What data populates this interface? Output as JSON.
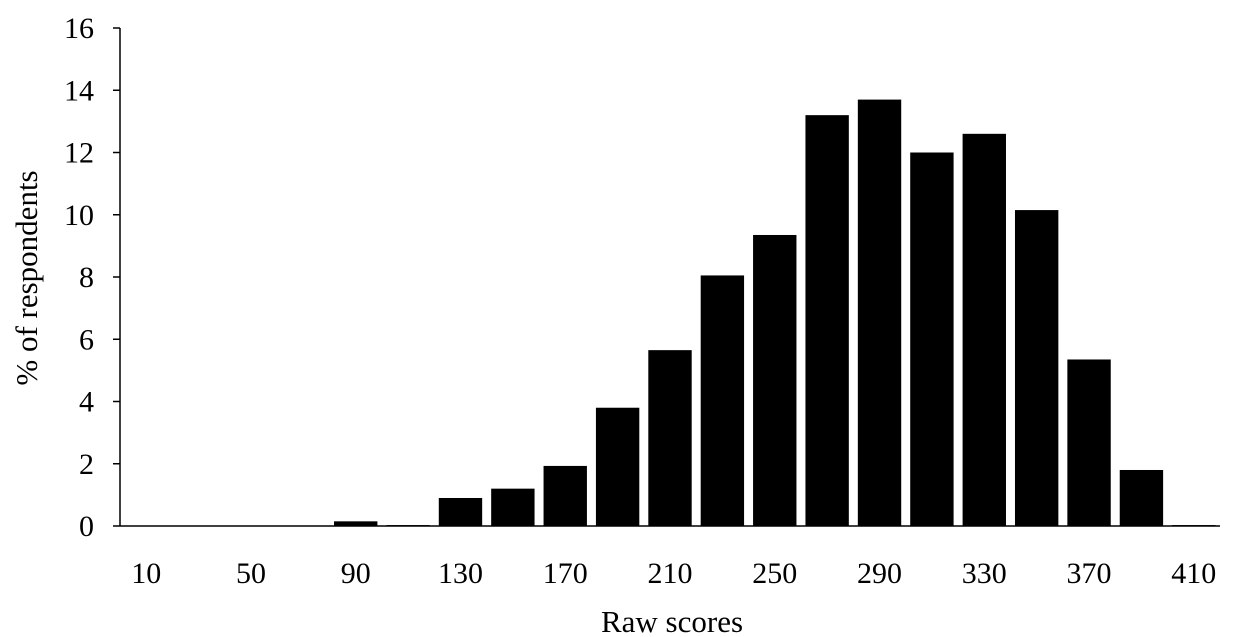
{
  "chart_data": {
    "type": "bar",
    "title": "",
    "xlabel": "Raw scores",
    "ylabel": "% of respondents",
    "ylim": [
      0,
      16
    ],
    "yticks": [
      0,
      2,
      4,
      6,
      8,
      10,
      12,
      14,
      16
    ],
    "grid": false,
    "legend": "none",
    "bar_color": "#000000",
    "categories": [
      10,
      30,
      50,
      70,
      90,
      110,
      130,
      150,
      170,
      190,
      210,
      230,
      250,
      270,
      290,
      310,
      330,
      350,
      370,
      390,
      410
    ],
    "x_tick_labels": [
      "10",
      "50",
      "90",
      "130",
      "170",
      "210",
      "250",
      "290",
      "330",
      "370",
      "410"
    ],
    "series": [
      {
        "values": [
          0,
          0,
          0,
          0,
          0.15,
          0.03,
          0.9,
          1.2,
          1.93,
          3.8,
          5.65,
          8.05,
          9.35,
          13.2,
          13.7,
          12.0,
          12.6,
          10.15,
          5.35,
          1.8,
          0.03
        ]
      }
    ]
  }
}
